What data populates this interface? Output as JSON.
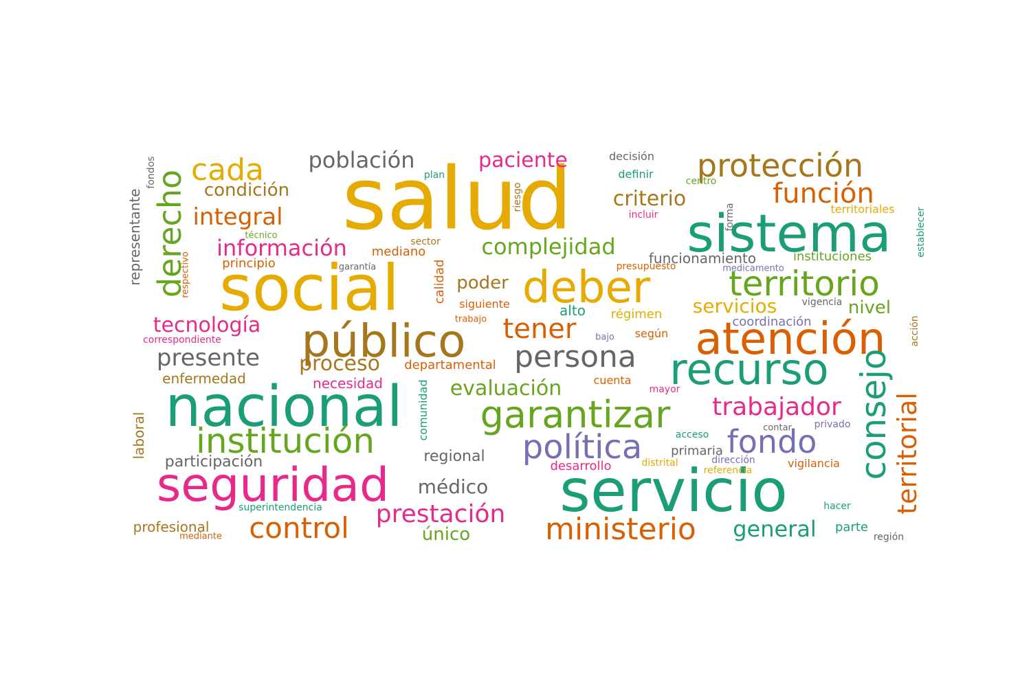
{
  "colors": {
    "teal": "#1b9e77",
    "orange": "#d95f02",
    "purple": "#7570b3",
    "pink": "#e7298a",
    "green": "#66a61e",
    "gold": "#e6ab02",
    "brown": "#a6761d",
    "gray": "#666666"
  },
  "words": [
    {
      "id": "salud",
      "text": "salud",
      "color": "gold"
    },
    {
      "id": "social",
      "text": "social",
      "color": "gold"
    },
    {
      "id": "sistema",
      "text": "sistema",
      "color": "teal"
    },
    {
      "id": "servicio",
      "text": "servicio",
      "color": "teal"
    },
    {
      "id": "nacional",
      "text": "nacional",
      "color": "teal"
    },
    {
      "id": "publico",
      "text": "público",
      "color": "brown"
    },
    {
      "id": "atencion",
      "text": "atención",
      "color": "orange"
    },
    {
      "id": "recurso",
      "text": "recurso",
      "color": "teal"
    },
    {
      "id": "seguridad",
      "text": "seguridad",
      "color": "pink"
    },
    {
      "id": "garantizar",
      "text": "garantizar",
      "color": "green"
    },
    {
      "id": "deber",
      "text": "deber",
      "color": "gold"
    },
    {
      "id": "territorio",
      "text": "territorio",
      "color": "green"
    },
    {
      "id": "proteccion",
      "text": "protección",
      "color": "brown"
    },
    {
      "id": "institucion",
      "text": "institución",
      "color": "green"
    },
    {
      "id": "consejo",
      "text": "consejo",
      "color": "teal"
    },
    {
      "id": "politica",
      "text": "política",
      "color": "purple"
    },
    {
      "id": "fondo",
      "text": "fondo",
      "color": "purple"
    },
    {
      "id": "persona",
      "text": "persona",
      "color": "gray"
    },
    {
      "id": "ministerio",
      "text": "ministerio",
      "color": "orange"
    },
    {
      "id": "control",
      "text": "control",
      "color": "orange"
    },
    {
      "id": "derecho",
      "text": "derecho",
      "color": "green"
    },
    {
      "id": "cada",
      "text": "cada",
      "color": "gold"
    },
    {
      "id": "funcion",
      "text": "función",
      "color": "orange"
    },
    {
      "id": "territorial",
      "text": "territorial",
      "color": "orange"
    },
    {
      "id": "tener",
      "text": "tener",
      "color": "orange"
    },
    {
      "id": "prestacion",
      "text": "prestación",
      "color": "pink"
    },
    {
      "id": "trabajador",
      "text": "trabajador",
      "color": "pink"
    },
    {
      "id": "presente",
      "text": "presente",
      "color": "gray"
    },
    {
      "id": "integral",
      "text": "integral",
      "color": "orange"
    },
    {
      "id": "informacion",
      "text": "información",
      "color": "pink"
    },
    {
      "id": "complejidad",
      "text": "complejidad",
      "color": "green"
    },
    {
      "id": "poblacion",
      "text": "población",
      "color": "gray"
    },
    {
      "id": "paciente",
      "text": "paciente",
      "color": "pink"
    },
    {
      "id": "criterio",
      "text": "criterio",
      "color": "brown"
    },
    {
      "id": "tecnologia",
      "text": "tecnología",
      "color": "pink"
    },
    {
      "id": "proceso",
      "text": "proceso",
      "color": "brown"
    },
    {
      "id": "evaluacion",
      "text": "evaluación",
      "color": "green"
    },
    {
      "id": "general",
      "text": "general",
      "color": "teal"
    },
    {
      "id": "medico",
      "text": "médico",
      "color": "gray"
    },
    {
      "id": "condicion",
      "text": "condición",
      "color": "brown"
    },
    {
      "id": "servicios",
      "text": "servicios",
      "color": "gold"
    },
    {
      "id": "poder",
      "text": "poder",
      "color": "brown"
    },
    {
      "id": "nivel",
      "text": "nivel",
      "color": "green"
    },
    {
      "id": "unico",
      "text": "único",
      "color": "green"
    },
    {
      "id": "participacion",
      "text": "participación",
      "color": "gray"
    },
    {
      "id": "regional",
      "text": "regional",
      "color": "gray"
    },
    {
      "id": "enfermedad",
      "text": "enfermedad",
      "color": "brown"
    },
    {
      "id": "necesidad",
      "text": "necesidad",
      "color": "pink"
    },
    {
      "id": "departamental",
      "text": "departamental",
      "color": "orange"
    },
    {
      "id": "profesional",
      "text": "profesional",
      "color": "brown"
    },
    {
      "id": "representante",
      "text": "representante",
      "color": "gray"
    },
    {
      "id": "laboral",
      "text": "laboral",
      "color": "brown"
    },
    {
      "id": "funcionamiento",
      "text": "funcionamiento",
      "color": "gray"
    },
    {
      "id": "instituciones",
      "text": "instituciones",
      "color": "green"
    },
    {
      "id": "principio",
      "text": "principio",
      "color": "orange"
    },
    {
      "id": "mediano",
      "text": "mediano",
      "color": "orange"
    },
    {
      "id": "calidad",
      "text": "calidad",
      "color": "orange"
    },
    {
      "id": "siguiente",
      "text": "siguiente",
      "color": "orange"
    },
    {
      "id": "regimen",
      "text": "régimen",
      "color": "gold"
    },
    {
      "id": "alto",
      "text": "alto",
      "color": "teal"
    },
    {
      "id": "coordinacion",
      "text": "coordinación",
      "color": "purple"
    },
    {
      "id": "desarrollo",
      "text": "desarrollo",
      "color": "pink"
    },
    {
      "id": "vigilancia",
      "text": "vigilancia",
      "color": "orange"
    },
    {
      "id": "primaria",
      "text": "primaria",
      "color": "gray"
    },
    {
      "id": "definir",
      "text": "definir",
      "color": "teal"
    },
    {
      "id": "segun",
      "text": "según",
      "color": "orange"
    },
    {
      "id": "parte",
      "text": "parte",
      "color": "teal"
    },
    {
      "id": "sector",
      "text": "sector",
      "color": "brown"
    },
    {
      "id": "cuenta",
      "text": "cuenta",
      "color": "orange"
    },
    {
      "id": "comunidad",
      "text": "comunidad",
      "color": "teal"
    },
    {
      "id": "establecer",
      "text": "establecer",
      "color": "teal"
    },
    {
      "id": "correspondiente",
      "text": "correspondiente",
      "color": "pink"
    },
    {
      "id": "superintendencia",
      "text": "superintendencia",
      "color": "teal"
    },
    {
      "id": "territoriales",
      "text": "territoriales",
      "color": "gold"
    },
    {
      "id": "decision",
      "text": "decisión",
      "color": "gray"
    },
    {
      "id": "forma",
      "text": "forma",
      "color": "gray"
    },
    {
      "id": "riesgo",
      "text": "riesgo",
      "color": "brown"
    },
    {
      "id": "presupuesto",
      "text": "presupuesto",
      "color": "orange"
    },
    {
      "id": "vigencia",
      "text": "vigencia",
      "color": "gray"
    },
    {
      "id": "accion",
      "text": "acción",
      "color": "brown"
    },
    {
      "id": "mayor",
      "text": "mayor",
      "color": "pink"
    },
    {
      "id": "acceso",
      "text": "acceso",
      "color": "teal"
    },
    {
      "id": "privado",
      "text": "privado",
      "color": "purple"
    },
    {
      "id": "contar",
      "text": "contar",
      "color": "gray"
    },
    {
      "id": "distrital",
      "text": "distrital",
      "color": "gold"
    },
    {
      "id": "direccion",
      "text": "dirección",
      "color": "purple"
    },
    {
      "id": "referencia",
      "text": "referencia",
      "color": "gold"
    },
    {
      "id": "hacer",
      "text": "hacer",
      "color": "teal"
    },
    {
      "id": "region",
      "text": "región",
      "color": "gray"
    },
    {
      "id": "mediante",
      "text": "mediante",
      "color": "orange"
    },
    {
      "id": "medicamento",
      "text": "medicamento",
      "color": "purple"
    },
    {
      "id": "garantia",
      "text": "garantía",
      "color": "gray"
    },
    {
      "id": "trabajo",
      "text": "trabajo",
      "color": "orange"
    },
    {
      "id": "respectivo",
      "text": "respectivo",
      "color": "orange"
    },
    {
      "id": "tecnico",
      "text": "técnico",
      "color": "green"
    },
    {
      "id": "fondos",
      "text": "fondos",
      "color": "gray"
    },
    {
      "id": "plan",
      "text": "plan",
      "color": "teal"
    },
    {
      "id": "centro",
      "text": "centro",
      "color": "green"
    },
    {
      "id": "incluir",
      "text": "incluir",
      "color": "pink"
    },
    {
      "id": "bajo",
      "text": "bajo",
      "color": "purple"
    }
  ]
}
